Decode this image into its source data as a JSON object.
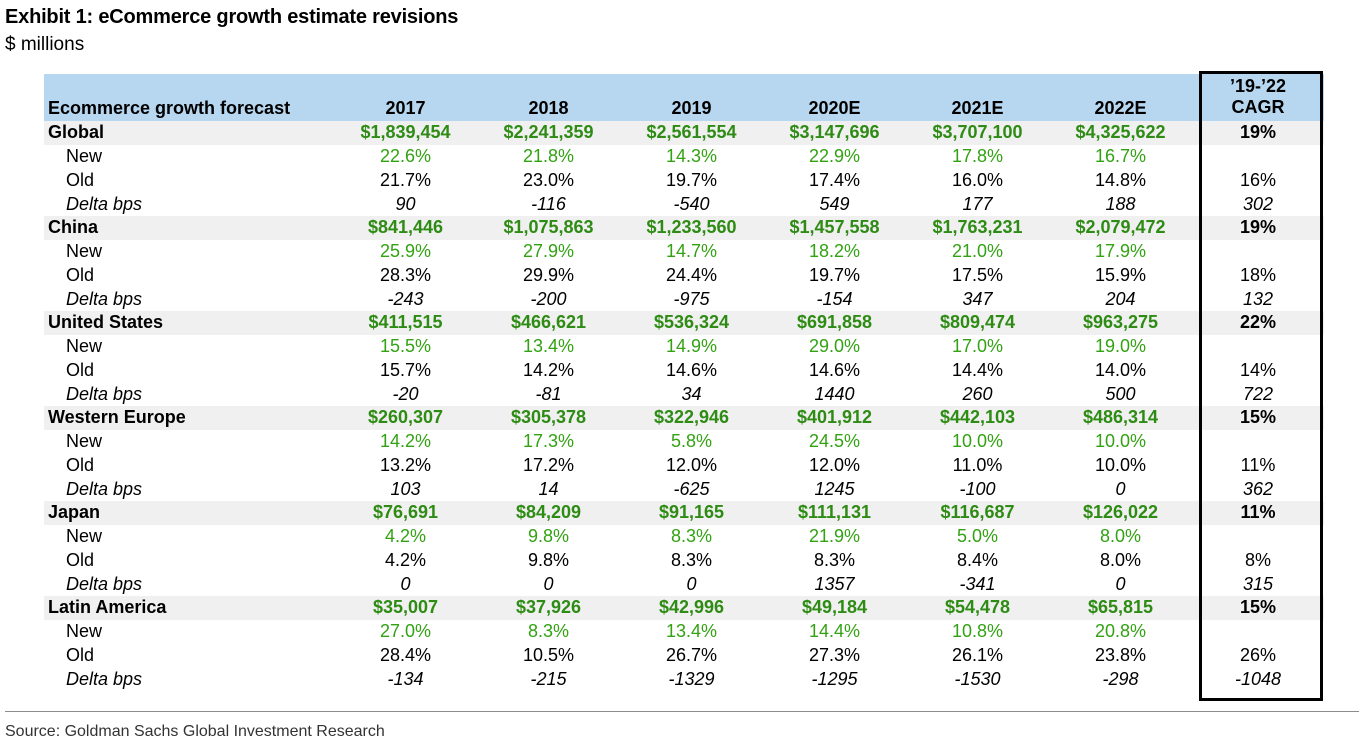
{
  "title": "Exhibit 1: eCommerce growth estimate revisions",
  "subtitle": "$ millions",
  "source": "Source: Goldman Sachs Global Investment Research",
  "table": {
    "header": {
      "label": "Ecommerce growth forecast",
      "years": [
        "2017",
        "2018",
        "2019",
        "2020E",
        "2021E",
        "2022E"
      ],
      "cagr_line1": "’19-’22",
      "cagr_line2": "CAGR"
    },
    "regions": [
      {
        "name": "Global",
        "values": [
          "$1,839,454",
          "$2,241,359",
          "$2,561,554",
          "$3,147,696",
          "$3,707,100",
          "$4,325,622"
        ],
        "cagr": "19%",
        "new": {
          "label": "New",
          "values": [
            "22.6%",
            "21.8%",
            "14.3%",
            "22.9%",
            "17.8%",
            "16.7%"
          ],
          "cagr": ""
        },
        "old": {
          "label": "Old",
          "values": [
            "21.7%",
            "23.0%",
            "19.7%",
            "17.4%",
            "16.0%",
            "14.8%"
          ],
          "cagr": "16%"
        },
        "delta": {
          "label": "Delta bps",
          "values": [
            "90",
            "-116",
            "-540",
            "549",
            "177",
            "188"
          ],
          "cagr": "302"
        }
      },
      {
        "name": "China",
        "values": [
          "$841,446",
          "$1,075,863",
          "$1,233,560",
          "$1,457,558",
          "$1,763,231",
          "$2,079,472"
        ],
        "cagr": "19%",
        "new": {
          "label": "New",
          "values": [
            "25.9%",
            "27.9%",
            "14.7%",
            "18.2%",
            "21.0%",
            "17.9%"
          ],
          "cagr": ""
        },
        "old": {
          "label": "Old",
          "values": [
            "28.3%",
            "29.9%",
            "24.4%",
            "19.7%",
            "17.5%",
            "15.9%"
          ],
          "cagr": "18%"
        },
        "delta": {
          "label": "Delta bps",
          "values": [
            "-243",
            "-200",
            "-975",
            "-154",
            "347",
            "204"
          ],
          "cagr": "132"
        }
      },
      {
        "name": "United States",
        "values": [
          "$411,515",
          "$466,621",
          "$536,324",
          "$691,858",
          "$809,474",
          "$963,275"
        ],
        "cagr": "22%",
        "new": {
          "label": "New",
          "values": [
            "15.5%",
            "13.4%",
            "14.9%",
            "29.0%",
            "17.0%",
            "19.0%"
          ],
          "cagr": ""
        },
        "old": {
          "label": "Old",
          "values": [
            "15.7%",
            "14.2%",
            "14.6%",
            "14.6%",
            "14.4%",
            "14.0%"
          ],
          "cagr": "14%"
        },
        "delta": {
          "label": "Delta bps",
          "values": [
            "-20",
            "-81",
            "34",
            "1440",
            "260",
            "500"
          ],
          "cagr": "722"
        }
      },
      {
        "name": "Western Europe",
        "values": [
          "$260,307",
          "$305,378",
          "$322,946",
          "$401,912",
          "$442,103",
          "$486,314"
        ],
        "cagr": "15%",
        "new": {
          "label": "New",
          "values": [
            "14.2%",
            "17.3%",
            "5.8%",
            "24.5%",
            "10.0%",
            "10.0%"
          ],
          "cagr": ""
        },
        "old": {
          "label": "Old",
          "values": [
            "13.2%",
            "17.2%",
            "12.0%",
            "12.0%",
            "11.0%",
            "10.0%"
          ],
          "cagr": "11%"
        },
        "delta": {
          "label": "Delta bps",
          "values": [
            "103",
            "14",
            "-625",
            "1245",
            "-100",
            "0"
          ],
          "cagr": "362"
        }
      },
      {
        "name": "Japan",
        "values": [
          "$76,691",
          "$84,209",
          "$91,165",
          "$111,131",
          "$116,687",
          "$126,022"
        ],
        "cagr": "11%",
        "new": {
          "label": "New",
          "values": [
            "4.2%",
            "9.8%",
            "8.3%",
            "21.9%",
            "5.0%",
            "8.0%"
          ],
          "cagr": ""
        },
        "old": {
          "label": "Old",
          "values": [
            "4.2%",
            "9.8%",
            "8.3%",
            "8.3%",
            "8.4%",
            "8.0%"
          ],
          "cagr": "8%"
        },
        "delta": {
          "label": "Delta bps",
          "values": [
            "0",
            "0",
            "0",
            "1357",
            "-341",
            "0"
          ],
          "cagr": "315"
        }
      },
      {
        "name": "Latin America",
        "values": [
          "$35,007",
          "$37,926",
          "$42,996",
          "$49,184",
          "$54,478",
          "$65,815"
        ],
        "cagr": "15%",
        "new": {
          "label": "New",
          "values": [
            "27.0%",
            "8.3%",
            "13.4%",
            "14.4%",
            "10.8%",
            "20.8%"
          ],
          "cagr": ""
        },
        "old": {
          "label": "Old",
          "values": [
            "28.4%",
            "10.5%",
            "26.7%",
            "27.3%",
            "26.1%",
            "23.8%"
          ],
          "cagr": "26%"
        },
        "delta": {
          "label": "Delta bps",
          "values": [
            "-134",
            "-215",
            "-1329",
            "-1295",
            "-1530",
            "-298"
          ],
          "cagr": "-1048"
        }
      }
    ]
  },
  "colors": {
    "header_bg": "#b7d7f0",
    "region_row_bg": "#f0f0f0",
    "region_value_green": "#2e8b14",
    "new_value_green": "#32a212"
  }
}
